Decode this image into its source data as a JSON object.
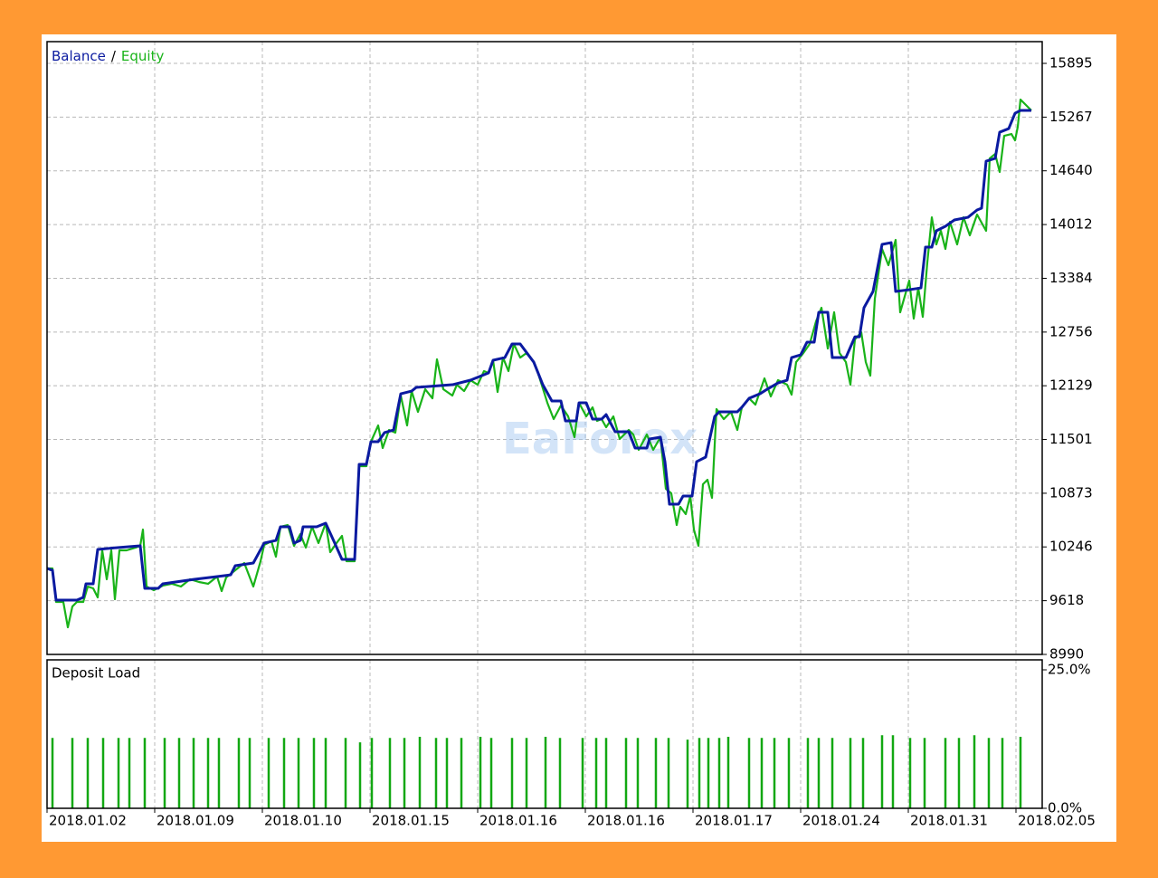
{
  "chart_data": [
    {
      "type": "line",
      "legend_separator": "/",
      "watermark": "EaForex",
      "ylim": [
        8990,
        16149
      ],
      "yticks": [
        8990,
        9618,
        10246,
        10873,
        11501,
        12129,
        12756,
        13384,
        14012,
        14640,
        15267,
        15895
      ],
      "grid": true,
      "series": [
        {
          "name": "Balance",
          "color": "#0a1aa0",
          "x": [
            0,
            6,
            10,
            33,
            40,
            43,
            51,
            56,
            78,
            103,
            108,
            123,
            128,
            163,
            188,
            203,
            208,
            228,
            240,
            253,
            258,
            268,
            273,
            280,
            283,
            298,
            308,
            318,
            326,
            340,
            345,
            353,
            358,
            366,
            373,
            383,
            391,
            403,
            408,
            448,
            468,
            488,
            493,
            506,
            514,
            523,
            538,
            548,
            558,
            568,
            573,
            585,
            588,
            596,
            603,
            613,
            618,
            628,
            643,
            650,
            663,
            666,
            678,
            683,
            688,
            698,
            703,
            713,
            718,
            728,
            738,
            743,
            763,
            768,
            776,
            788,
            796,
            808,
            818,
            823,
            833,
            840,
            848,
            853,
            863,
            868,
            883,
            893,
            898,
            903,
            913,
            923,
            933,
            938,
            953,
            966,
            971,
            978,
            983,
            993,
            1003,
            1018,
            1028,
            1033,
            1038,
            1048,
            1053,
            1063,
            1070,
            1076,
            1088
          ],
          "values": [
            9995,
            9973,
            9624,
            9624,
            9656,
            9815,
            9815,
            10217,
            10238,
            10259,
            9762,
            9762,
            9815,
            9868,
            9899,
            9920,
            10026,
            10058,
            10291,
            10322,
            10481,
            10481,
            10291,
            10322,
            10481,
            10481,
            10523,
            10291,
            10100,
            10100,
            11211,
            11211,
            11475,
            11475,
            11581,
            11612,
            12035,
            12067,
            12109,
            12141,
            12194,
            12279,
            12427,
            12458,
            12617,
            12617,
            12405,
            12141,
            11951,
            11951,
            11718,
            11718,
            11930,
            11930,
            11739,
            11739,
            11792,
            11591,
            11591,
            11401,
            11401,
            11507,
            11528,
            11242,
            10745,
            10745,
            10840,
            10840,
            11242,
            11295,
            11771,
            11824,
            11824,
            11877,
            11982,
            12035,
            12088,
            12162,
            12194,
            12458,
            12490,
            12638,
            12638,
            12987,
            12987,
            12458,
            12458,
            12701,
            12701,
            13040,
            13230,
            13780,
            13801,
            13230,
            13251,
            13272,
            13748,
            13748,
            13939,
            13992,
            14066,
            14097,
            14182,
            14203,
            14753,
            14785,
            15091,
            15133,
            15313,
            15345,
            15345
          ]
        },
        {
          "name": "Equity",
          "color": "#19b319",
          "x": [
            0,
            6,
            10,
            18,
            23,
            28,
            33,
            40,
            45,
            51,
            56,
            61,
            66,
            71,
            75,
            80,
            88,
            98,
            103,
            106,
            110,
            118,
            128,
            138,
            148,
            158,
            168,
            178,
            188,
            193,
            198,
            208,
            218,
            228,
            236,
            240,
            248,
            253,
            258,
            266,
            273,
            280,
            286,
            293,
            300,
            308,
            313,
            320,
            326,
            331,
            340,
            345,
            353,
            358,
            366,
            371,
            378,
            385,
            391,
            398,
            403,
            410,
            418,
            426,
            431,
            438,
            448,
            453,
            461,
            468,
            476,
            483,
            488,
            493,
            498,
            504,
            510,
            516,
            523,
            530,
            538,
            543,
            553,
            560,
            568,
            576,
            583,
            588,
            596,
            603,
            608,
            613,
            618,
            626,
            633,
            643,
            648,
            654,
            663,
            670,
            678,
            684,
            690,
            696,
            700,
            706,
            711,
            715,
            720,
            725,
            730,
            735,
            740,
            748,
            756,
            763,
            768,
            776,
            783,
            793,
            800,
            808,
            818,
            823,
            828,
            836,
            843,
            850,
            856,
            863,
            870,
            876,
            883,
            888,
            893,
            900,
            905,
            910,
            915,
            923,
            930,
            938,
            943,
            953,
            958,
            963,
            968,
            973,
            978,
            983,
            988,
            993,
            998,
            1006,
            1013,
            1020,
            1028,
            1038,
            1042,
            1048,
            1053,
            1058,
            1066,
            1070,
            1073,
            1076,
            1081,
            1088
          ],
          "values": [
            9995,
            9995,
            9603,
            9603,
            9307,
            9550,
            9603,
            9603,
            9783,
            9762,
            9656,
            10206,
            9868,
            10206,
            9635,
            10206,
            10206,
            10238,
            10259,
            10449,
            9783,
            9741,
            9794,
            9815,
            9783,
            9868,
            9836,
            9815,
            9899,
            9730,
            9889,
            9973,
            10058,
            9783,
            10079,
            10269,
            10312,
            10132,
            10481,
            10502,
            10259,
            10396,
            10238,
            10481,
            10291,
            10523,
            10185,
            10291,
            10375,
            10079,
            10079,
            11189,
            11189,
            11475,
            11665,
            11401,
            11612,
            11581,
            12014,
            11665,
            12067,
            11824,
            12088,
            11982,
            12437,
            12088,
            12014,
            12141,
            12067,
            12194,
            12141,
            12300,
            12279,
            12427,
            12056,
            12458,
            12300,
            12617,
            12458,
            12511,
            12405,
            12268,
            11930,
            11739,
            11898,
            11771,
            11528,
            11930,
            11771,
            11877,
            11718,
            11739,
            11644,
            11771,
            11507,
            11612,
            11559,
            11380,
            11559,
            11380,
            11528,
            10925,
            10872,
            10502,
            10714,
            10629,
            10840,
            10449,
            10259,
            10978,
            11031,
            10819,
            11856,
            11739,
            11824,
            11612,
            11877,
            11982,
            11908,
            12215,
            12004,
            12194,
            12141,
            12025,
            12405,
            12511,
            12617,
            12881,
            13040,
            12564,
            12987,
            12511,
            12405,
            12141,
            12670,
            12754,
            12405,
            12247,
            13146,
            13727,
            13537,
            13833,
            12987,
            13357,
            12913,
            13272,
            12934,
            13569,
            14097,
            13780,
            13939,
            13727,
            14044,
            13780,
            14097,
            13886,
            14129,
            13939,
            14785,
            14837,
            14626,
            15049,
            15070,
            14996,
            15155,
            15472,
            15419,
            15345
          ]
        }
      ]
    },
    {
      "type": "bar",
      "title": "Deposit Load",
      "color": "#12a812",
      "xlim": [
        0,
        1100
      ],
      "xticks": [
        {
          "value": 0,
          "label": "2018.01.02"
        },
        {
          "value": 119,
          "label": "2018.01.09"
        },
        {
          "value": 238,
          "label": "2018.01.10"
        },
        {
          "value": 357,
          "label": "2018.01.15"
        },
        {
          "value": 476,
          "label": "2018.01.16"
        },
        {
          "value": 595,
          "label": "2018.01.16"
        },
        {
          "value": 714,
          "label": "2018.01.17"
        },
        {
          "value": 833,
          "label": "2018.01.24"
        },
        {
          "value": 952,
          "label": "2018.01.31"
        },
        {
          "value": 1071,
          "label": "2018.02.05"
        }
      ],
      "ylim": [
        0,
        26.8
      ],
      "yticks": [
        {
          "value": 0,
          "label": "0.0%"
        },
        {
          "value": 25,
          "label": "25.0%"
        }
      ],
      "x": [
        6,
        28,
        45,
        62,
        79,
        91,
        108,
        130,
        146,
        162,
        178,
        190,
        212,
        224,
        245,
        262,
        278,
        295,
        308,
        330,
        346,
        359,
        379,
        395,
        412,
        430,
        442,
        458,
        479,
        491,
        514,
        530,
        551,
        567,
        592,
        607,
        618,
        640,
        653,
        673,
        687,
        708,
        721,
        731,
        743,
        753,
        776,
        790,
        804,
        820,
        841,
        853,
        868,
        888,
        902,
        923,
        935,
        954,
        970,
        993,
        1008,
        1025,
        1041,
        1056,
        1076
      ],
      "values": [
        12.7,
        12.7,
        12.7,
        12.7,
        12.7,
        12.7,
        12.7,
        12.7,
        12.7,
        12.7,
        12.7,
        12.7,
        12.7,
        12.7,
        12.7,
        12.7,
        12.7,
        12.7,
        12.7,
        12.7,
        11.9,
        12.7,
        12.7,
        12.7,
        12.9,
        12.7,
        12.7,
        12.7,
        12.9,
        12.7,
        12.7,
        12.7,
        12.9,
        12.7,
        12.7,
        12.7,
        12.7,
        12.7,
        12.7,
        12.7,
        12.7,
        12.4,
        12.7,
        12.7,
        12.7,
        12.9,
        12.7,
        12.7,
        12.7,
        12.7,
        12.7,
        12.7,
        12.7,
        12.7,
        12.7,
        13.2,
        13.2,
        12.7,
        12.7,
        12.7,
        12.7,
        13.2,
        12.7,
        12.7,
        12.9
      ]
    }
  ]
}
